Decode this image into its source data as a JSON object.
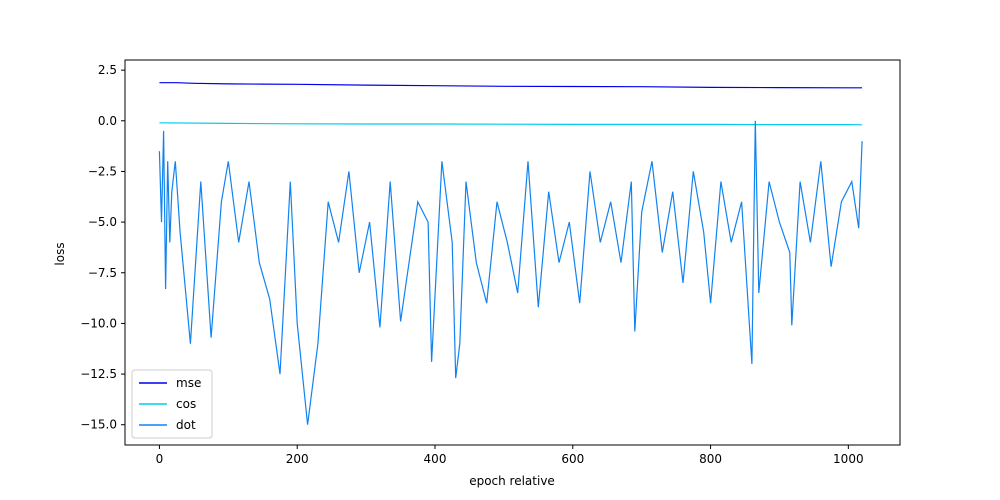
{
  "chart_data": {
    "type": "line",
    "title": "",
    "xlabel": "epoch relative",
    "ylabel": "loss",
    "xlim": [
      -50,
      1075
    ],
    "ylim": [
      -16,
      3
    ],
    "x_ticks": [
      0,
      200,
      400,
      600,
      800,
      1000
    ],
    "y_ticks": [
      2.5,
      0.0,
      -2.5,
      -5.0,
      -7.5,
      -10.0,
      -12.5,
      -15.0
    ],
    "x_tick_labels": [
      "0",
      "200",
      "400",
      "600",
      "800",
      "1000"
    ],
    "y_tick_labels": [
      "2.5",
      "0.0",
      "−2.5",
      "−5.0",
      "−7.5",
      "−10.0",
      "−12.5",
      "−15.0"
    ],
    "grid": false,
    "legend_position": "lower-left",
    "series": [
      {
        "name": "mse",
        "color": "#0000ee",
        "x": [
          0,
          25,
          50,
          100,
          150,
          200,
          300,
          400,
          500,
          600,
          700,
          800,
          900,
          1000,
          1020
        ],
        "values": [
          1.88,
          1.88,
          1.85,
          1.82,
          1.81,
          1.8,
          1.76,
          1.73,
          1.7,
          1.69,
          1.68,
          1.65,
          1.64,
          1.63,
          1.63
        ]
      },
      {
        "name": "cos",
        "color": "#00ccee",
        "x": [
          0,
          100,
          200,
          300,
          400,
          500,
          600,
          700,
          800,
          900,
          1000,
          1020
        ],
        "values": [
          -0.1,
          -0.13,
          -0.15,
          -0.16,
          -0.16,
          -0.17,
          -0.18,
          -0.18,
          -0.18,
          -0.19,
          -0.19,
          -0.2
        ]
      },
      {
        "name": "dot",
        "color": "#1183f0",
        "x": [
          0,
          3,
          6,
          9,
          12,
          15,
          18,
          23,
          30,
          45,
          60,
          75,
          90,
          100,
          115,
          130,
          145,
          160,
          175,
          190,
          200,
          215,
          230,
          245,
          260,
          275,
          290,
          305,
          320,
          335,
          350,
          358,
          375,
          390,
          395,
          410,
          425,
          430,
          436,
          445,
          460,
          475,
          490,
          505,
          520,
          535,
          550,
          565,
          580,
          595,
          610,
          625,
          640,
          655,
          670,
          685,
          690,
          700,
          715,
          730,
          745,
          760,
          775,
          790,
          800,
          815,
          830,
          845,
          860,
          865,
          870,
          885,
          900,
          915,
          918,
          930,
          945,
          960,
          975,
          990,
          1005,
          1015,
          1020
        ],
        "values": [
          -1.5,
          -5.0,
          -0.5,
          -8.3,
          -2.0,
          -6.0,
          -3.5,
          -2.0,
          -5.5,
          -11.0,
          -3.0,
          -10.7,
          -4.0,
          -2.0,
          -6.0,
          -3.0,
          -7.0,
          -8.8,
          -12.5,
          -3.0,
          -10.0,
          -15.0,
          -11.0,
          -4.0,
          -6.0,
          -2.5,
          -7.5,
          -5.0,
          -10.2,
          -3.0,
          -9.9,
          -8.0,
          -4.0,
          -5.0,
          -11.9,
          -2.0,
          -6.0,
          -12.7,
          -11.0,
          -3.0,
          -7.0,
          -9.0,
          -4.0,
          -6.0,
          -8.5,
          -2.0,
          -9.2,
          -3.5,
          -7.0,
          -5.0,
          -9.0,
          -2.5,
          -6.0,
          -4.0,
          -7.0,
          -3.0,
          -10.4,
          -4.5,
          -2.0,
          -6.5,
          -3.5,
          -8.0,
          -2.5,
          -5.5,
          -9.0,
          -3.0,
          -6.0,
          -4.0,
          -12.0,
          0.0,
          -8.5,
          -3.0,
          -5.0,
          -6.5,
          -10.1,
          -3.0,
          -6.0,
          -2.0,
          -7.2,
          -4.0,
          -3.0,
          -5.3,
          -1.0
        ]
      }
    ]
  }
}
